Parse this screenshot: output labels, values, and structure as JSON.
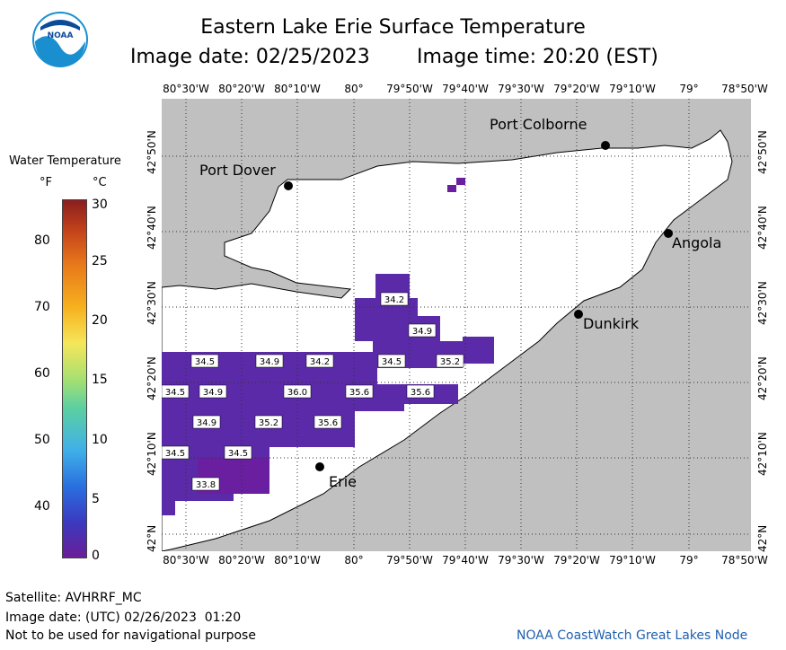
{
  "header": {
    "title": "Eastern Lake Erie Surface Temperature",
    "subtitle_date": "Image date: 02/25/2023",
    "subtitle_time": "Image time: 20:20 (EST)",
    "logo_text": "NOAA"
  },
  "map": {
    "lon_labels": [
      "80°30'W",
      "80°20'W",
      "80°10'W",
      "80°",
      "79°50'W",
      "79°40'W",
      "79°30'W",
      "79°20'W",
      "79°10'W",
      "79°",
      "78°50'W"
    ],
    "lat_labels": [
      "42°N",
      "42°10'N",
      "42°20'N",
      "42°30'N",
      "42°40'N",
      "42°50'N"
    ],
    "cities": {
      "port_colborne": "Port Colborne",
      "port_dover": "Port Dover",
      "angola": "Angola",
      "dunkirk": "Dunkirk",
      "erie": "Erie"
    },
    "temperature_labels": [
      "34.2",
      "34.9",
      "34.5",
      "34.9",
      "34.2",
      "34.5",
      "35.2",
      "34.5",
      "34.9",
      "36.0",
      "35.6",
      "35.6",
      "34.9",
      "35.2",
      "35.6",
      "34.5",
      "34.5",
      "33.8"
    ],
    "colors": {
      "land": "#c0c0c0",
      "water": "#ffffff",
      "warm_water": "#5a2aa8",
      "cool_water": "#6a1ea0"
    }
  },
  "legend": {
    "title": "Water Temperature",
    "unit_f": "°F",
    "unit_c": "°C",
    "f_ticks": [
      "80",
      "70",
      "60",
      "50",
      "40"
    ],
    "c_ticks": [
      "30",
      "25",
      "20",
      "15",
      "10",
      "5",
      "0"
    ]
  },
  "footer": {
    "satellite": "Satellite: AVHRRF_MC",
    "image_date_utc": "Image date: (UTC) 02/26/2023  01:20",
    "disclaimer": "Not to be used for navigational purpose",
    "credit": "NOAA CoastWatch Great Lakes Node"
  }
}
